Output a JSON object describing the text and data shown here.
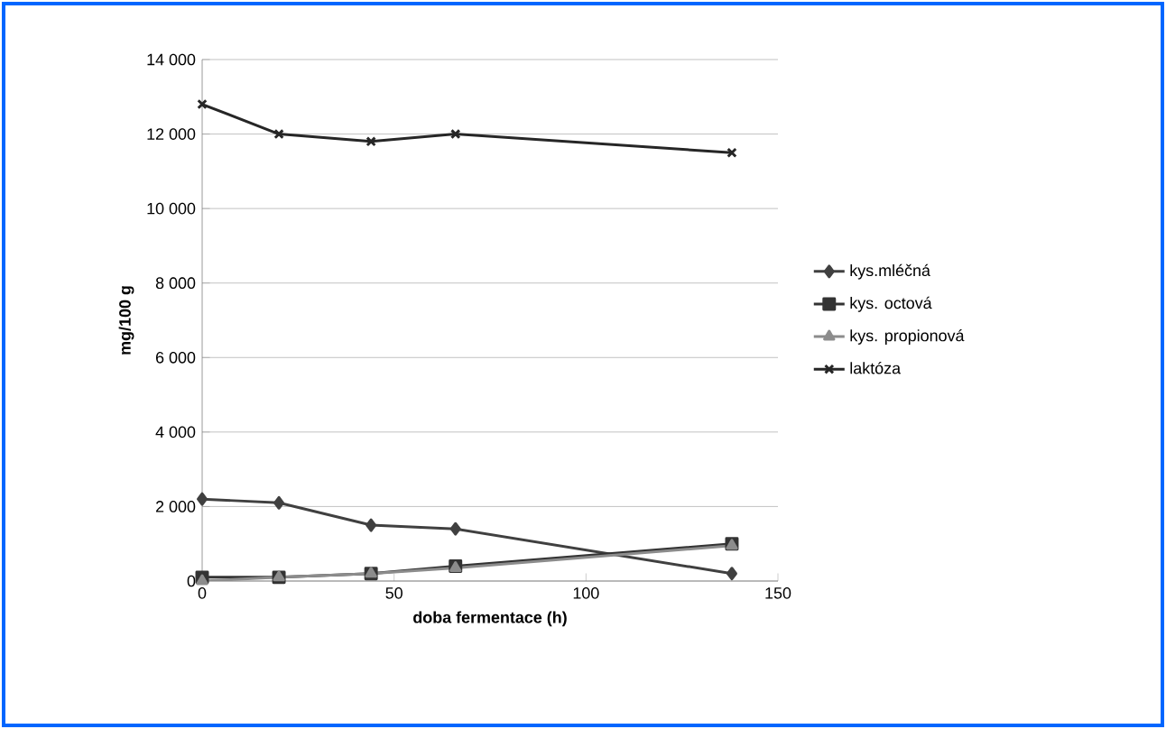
{
  "chart_data": {
    "type": "line",
    "xlabel": "doba fermentace (h)",
    "ylabel": "mg/100 g",
    "x": [
      0,
      20,
      44,
      66,
      138
    ],
    "series": [
      {
        "name": "kys.mléčná",
        "color": "#404040",
        "marker": "diamond",
        "values": [
          2200,
          2100,
          1500,
          1400,
          200
        ]
      },
      {
        "name": "kys. octová",
        "color": "#333333",
        "marker": "square",
        "values": [
          100,
          100,
          200,
          400,
          1000
        ]
      },
      {
        "name": "kys. propionová",
        "color": "#8c8c8c",
        "marker": "triangle",
        "values": [
          0,
          100,
          200,
          350,
          950
        ]
      },
      {
        "name": "laktóza",
        "color": "#262626",
        "marker": "cross",
        "values": [
          12800,
          12000,
          11800,
          12000,
          11500
        ]
      }
    ],
    "xlim": [
      0,
      150
    ],
    "xticks": [
      0,
      50,
      100,
      150
    ],
    "ylim": [
      0,
      14000
    ],
    "yticks": [
      0,
      {
        "value": 2000,
        "label": "2 000"
      },
      {
        "value": 4000,
        "label": "4 000"
      },
      {
        "value": 6000,
        "label": "6 000"
      },
      {
        "value": 8000,
        "label": "8 000"
      },
      {
        "value": 10000,
        "label": "10 000"
      },
      {
        "value": 12000,
        "label": "12 000"
      },
      {
        "value": 14000,
        "label": "14 000"
      }
    ],
    "grid": "y",
    "legend": "right",
    "line_style": "solid"
  }
}
